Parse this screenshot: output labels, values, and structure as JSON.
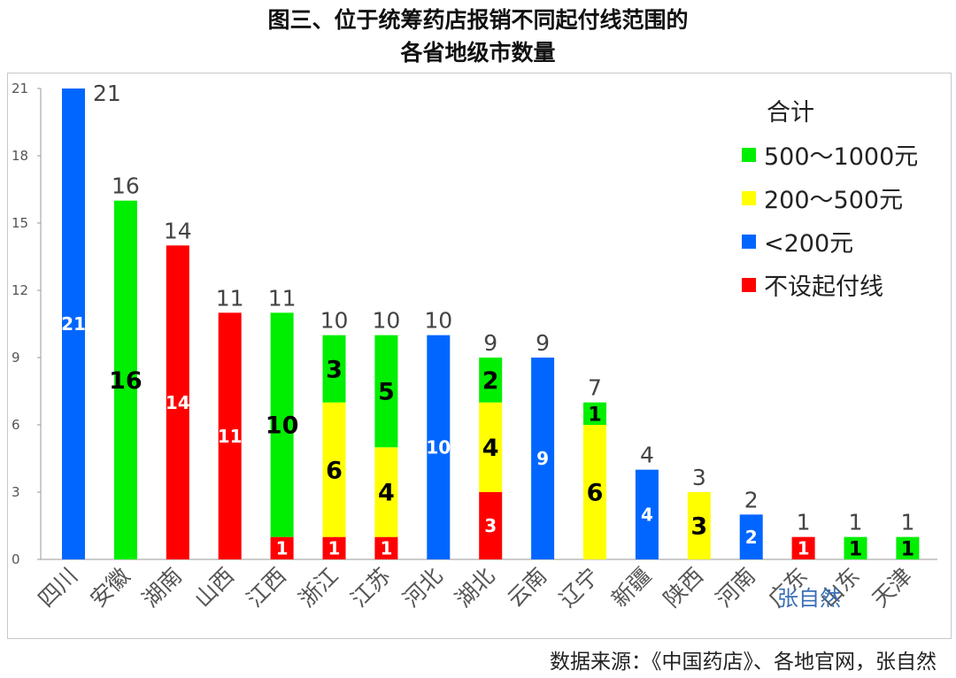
{
  "title_lines": [
    "图三、位于统筹药店报销不同起付线范围的",
    "各省地级市数量"
  ],
  "source_note": "数据来源：《中国药店》、各地官网，张自然",
  "watermark": "张自然",
  "colors": {
    "green": "#00ee00",
    "yellow": "#ffff00",
    "blue": "#0066ff",
    "red": "#ff0000"
  },
  "chart_data": {
    "type": "bar",
    "stacked": true,
    "categories": [
      "四川",
      "安徽",
      "湖南",
      "山西",
      "江西",
      "浙江",
      "江苏",
      "河北",
      "湖北",
      "云南",
      "辽宁",
      "新疆",
      "陕西",
      "河南",
      "广东",
      "山东",
      "天津"
    ],
    "series": [
      {
        "name": "不设起付线",
        "color": "#ff0000",
        "label_color": "#ffffff",
        "values": [
          0,
          0,
          14,
          11,
          1,
          1,
          1,
          0,
          3,
          0,
          0,
          0,
          0,
          0,
          1,
          0,
          0
        ]
      },
      {
        "name": "<200元",
        "color": "#0066ff",
        "label_color": "#ffffff",
        "values": [
          21,
          0,
          0,
          0,
          0,
          0,
          0,
          10,
          0,
          9,
          0,
          4,
          0,
          2,
          0,
          0,
          0
        ]
      },
      {
        "name": "200～500元",
        "color": "#ffff00",
        "label_color": "#000000",
        "values": [
          0,
          0,
          0,
          0,
          0,
          6,
          4,
          0,
          4,
          0,
          6,
          0,
          3,
          0,
          0,
          0,
          0
        ]
      },
      {
        "name": "500～1000元",
        "color": "#00ee00",
        "label_color": "#000000",
        "values": [
          0,
          16,
          0,
          0,
          10,
          3,
          5,
          0,
          2,
          0,
          1,
          0,
          0,
          0,
          0,
          1,
          1
        ]
      }
    ],
    "totals": [
      21,
      16,
      14,
      11,
      11,
      10,
      10,
      10,
      9,
      9,
      7,
      4,
      3,
      2,
      1,
      1,
      1
    ],
    "ylim": [
      0,
      21
    ],
    "yticks": [
      0,
      3,
      6,
      9,
      12,
      15,
      18,
      21
    ],
    "legend": {
      "position": "top-right",
      "title": "合计",
      "entries": [
        {
          "label": "500～1000元",
          "color": "#00ee00"
        },
        {
          "label": "200～500元",
          "color": "#ffff00"
        },
        {
          "label": "<200元",
          "color": "#0066ff"
        },
        {
          "label": "不设起付线",
          "color": "#ff0000"
        }
      ]
    },
    "grid": false
  }
}
